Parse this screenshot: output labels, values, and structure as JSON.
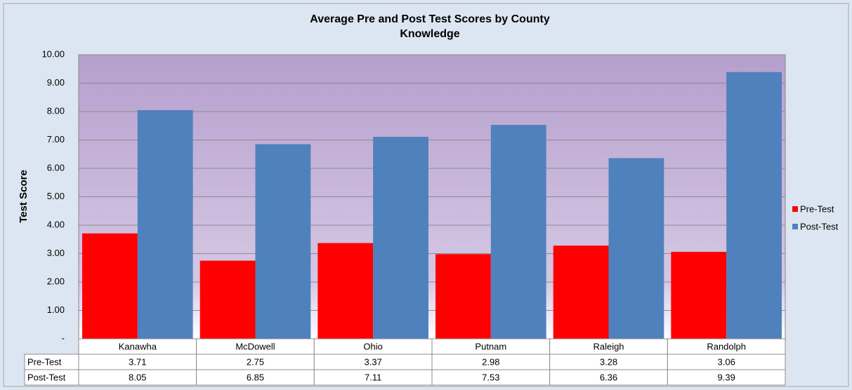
{
  "chart_data": {
    "type": "bar",
    "title": "Average Pre and Post Test Scores by County",
    "subtitle": "Knowledge",
    "y_label": "Test Score",
    "categories": [
      "Kanawha",
      "McDowell",
      "Ohio",
      "Putnam",
      "Raleigh",
      "Randolph"
    ],
    "series": [
      {
        "name": "Pre-Test",
        "color": "#ff0000",
        "values": [
          3.71,
          2.75,
          3.37,
          2.98,
          3.28,
          3.06
        ]
      },
      {
        "name": "Post-Test",
        "color": "#4f81bd",
        "values": [
          8.05,
          6.85,
          7.11,
          7.53,
          6.36,
          9.39
        ]
      }
    ],
    "ylim": [
      0,
      10
    ],
    "yticks": [
      {
        "value": 0,
        "label": "-"
      },
      {
        "value": 1,
        "label": "1.00"
      },
      {
        "value": 2,
        "label": "2.00"
      },
      {
        "value": 3,
        "label": "3.00"
      },
      {
        "value": 4,
        "label": "4.00"
      },
      {
        "value": 5,
        "label": "5.00"
      },
      {
        "value": 6,
        "label": "6.00"
      },
      {
        "value": 7,
        "label": "7.00"
      },
      {
        "value": 8,
        "label": "8.00"
      },
      {
        "value": 9,
        "label": "9.00"
      },
      {
        "value": 10,
        "label": "10.00"
      }
    ],
    "grid": true,
    "legend": "right"
  }
}
